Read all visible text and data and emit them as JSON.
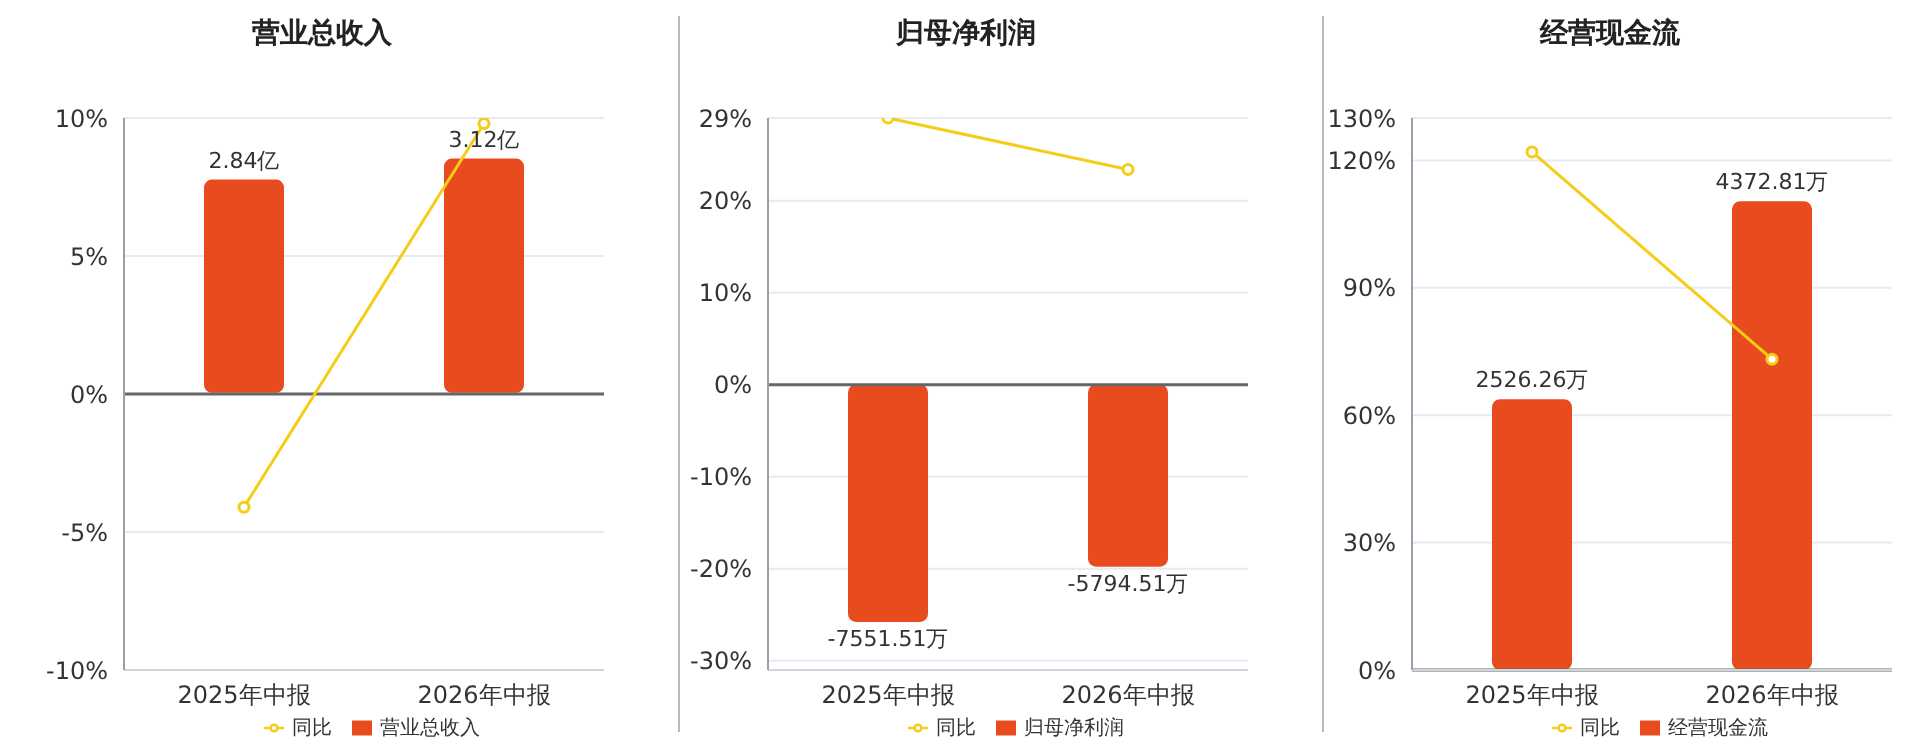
{
  "chart_data": [
    {
      "type": "bar",
      "title": "营业总收入",
      "categories": [
        "2025年中报",
        "2026年中报"
      ],
      "series": [
        {
          "name": "营业总收入",
          "axis": "y2",
          "color": "#e84c1e",
          "values": [
            2.84,
            3.12
          ],
          "value_labels": [
            "2.84亿",
            "3.12亿"
          ]
        },
        {
          "name": "同比",
          "type": "line",
          "color": "#f5cd19",
          "values": [
            -4.1,
            9.8
          ]
        }
      ],
      "ylim": [
        -10,
        10
      ],
      "yticks": [
        {
          "value": -10,
          "label": "-10%"
        },
        {
          "value": -5,
          "label": "-5%"
        },
        {
          "value": 0,
          "label": "0%"
        },
        {
          "value": 5,
          "label": "5%"
        },
        {
          "value": 10,
          "label": "10%"
        }
      ],
      "y2lim": [
        -3.69,
        3.66
      ],
      "grid": "y",
      "legend": "bottom",
      "marker": "circle"
    },
    {
      "type": "bar",
      "title": "归母净利润",
      "categories": [
        "2025年中报",
        "2026年中报"
      ],
      "series": [
        {
          "name": "归母净利润",
          "axis": "y2",
          "color": "#e84c1e",
          "values": [
            -7551.51,
            -5794.51
          ],
          "value_labels": [
            "-7551.51万",
            "-5794.51万"
          ]
        },
        {
          "name": "同比",
          "type": "line",
          "color": "#f5cd19",
          "values": [
            29,
            23.4
          ]
        }
      ],
      "ylim": [
        -31,
        29
      ],
      "yticks": [
        {
          "value": -30,
          "label": "-30%"
        },
        {
          "value": -20,
          "label": "-20%"
        },
        {
          "value": -10,
          "label": "-10%"
        },
        {
          "value": 0,
          "label": "0%"
        },
        {
          "value": 10,
          "label": "10%"
        },
        {
          "value": 20,
          "label": "20%"
        },
        {
          "value": 29,
          "label": "29%"
        }
      ],
      "y2lim": [
        -9080,
        8470
      ],
      "grid": "y",
      "legend": "bottom",
      "marker": "circle"
    },
    {
      "type": "bar",
      "title": "经营现金流",
      "categories": [
        "2025年中报",
        "2026年中报"
      ],
      "series": [
        {
          "name": "经营现金流",
          "axis": "y2",
          "color": "#e84c1e",
          "values": [
            2526.26,
            4372.81
          ],
          "value_labels": [
            "2526.26万",
            "4372.81万"
          ]
        },
        {
          "name": "同比",
          "type": "line",
          "color": "#f5cd19",
          "values": [
            122,
            73.2
          ]
        }
      ],
      "ylim": [
        0,
        130
      ],
      "yticks": [
        {
          "value": 0,
          "label": "0%"
        },
        {
          "value": 30,
          "label": "30%"
        },
        {
          "value": 60,
          "label": "60%"
        },
        {
          "value": 90,
          "label": "90%"
        },
        {
          "value": 120,
          "label": "120%"
        },
        {
          "value": 130,
          "label": "130%"
        }
      ],
      "y2lim": [
        0,
        5150
      ],
      "grid": "y",
      "legend": "bottom",
      "marker": "circle"
    }
  ]
}
